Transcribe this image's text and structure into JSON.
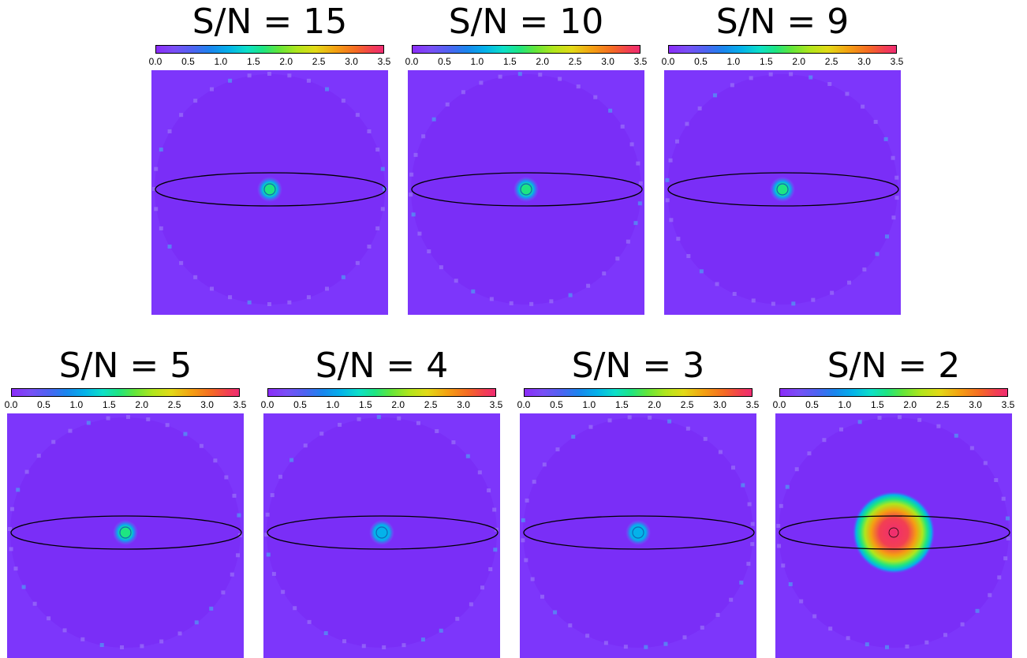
{
  "chart_data": [
    {
      "type": "heatmap",
      "title": "S/N = 15",
      "colorbar": {
        "vmin": 0.0,
        "vmax": 3.5,
        "ticks": [
          "0.0",
          "0.5",
          "1.0",
          "1.5",
          "2.0",
          "2.5",
          "3.0",
          "3.5"
        ]
      },
      "central_peak": 1.6
    },
    {
      "type": "heatmap",
      "title": "S/N = 10",
      "colorbar": {
        "vmin": 0.0,
        "vmax": 3.5,
        "ticks": [
          "0.0",
          "0.5",
          "1.0",
          "1.5",
          "2.0",
          "2.5",
          "3.0",
          "3.5"
        ]
      },
      "central_peak": 1.5
    },
    {
      "type": "heatmap",
      "title": "S/N = 9",
      "colorbar": {
        "vmin": 0.0,
        "vmax": 3.5,
        "ticks": [
          "0.0",
          "0.5",
          "1.0",
          "1.5",
          "2.0",
          "2.5",
          "3.0",
          "3.5"
        ]
      },
      "central_peak": 1.5
    },
    {
      "type": "heatmap",
      "title": "S/N = 5",
      "colorbar": {
        "vmin": 0.0,
        "vmax": 3.5,
        "ticks": [
          "0.0",
          "0.5",
          "1.0",
          "1.5",
          "2.0",
          "2.5",
          "3.0",
          "3.5"
        ]
      },
      "central_peak": 1.6
    },
    {
      "type": "heatmap",
      "title": "S/N = 4",
      "colorbar": {
        "vmin": 0.0,
        "vmax": 3.5,
        "ticks": [
          "0.0",
          "0.5",
          "1.0",
          "1.5",
          "2.0",
          "2.5",
          "3.0",
          "3.5"
        ]
      },
      "central_peak": 1.2
    },
    {
      "type": "heatmap",
      "title": "S/N = 3",
      "colorbar": {
        "vmin": 0.0,
        "vmax": 3.5,
        "ticks": [
          "0.0",
          "0.5",
          "1.0",
          "1.5",
          "2.0",
          "2.5",
          "3.0",
          "3.5"
        ]
      },
      "central_peak": 1.1
    },
    {
      "type": "heatmap",
      "title": "S/N = 2",
      "colorbar": {
        "vmin": 0.0,
        "vmax": 3.5,
        "ticks": [
          "0.0",
          "0.5",
          "1.0",
          "1.5",
          "2.0",
          "2.5",
          "3.0",
          "3.5"
        ]
      },
      "central_peak": 3.5
    }
  ],
  "colors": {
    "background": "#7d36fb",
    "disk": "#7a2ef7",
    "colormap": [
      "#8b2cf8",
      "#4f63f2",
      "#04b2ea",
      "#1ee582",
      "#b0e61c",
      "#f4a012",
      "#f23f52",
      "#f02c72"
    ],
    "ellipse": "#000000"
  }
}
